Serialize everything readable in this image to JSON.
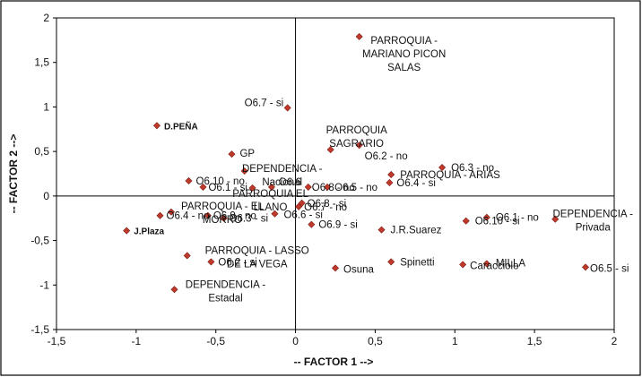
{
  "chart_data": {
    "type": "scatter",
    "title": "",
    "xlabel": "-- FACTOR 1 -->",
    "ylabel": "-- FACTOR 2 -->",
    "xlim": [
      -1.5,
      2
    ],
    "ylim": [
      -1.5,
      2
    ],
    "xticks": [
      "-1,5",
      "-1",
      "-0,5",
      "0",
      "0,5",
      "1",
      "1,5",
      "2"
    ],
    "yticks": [
      "-1,5",
      "-1",
      "-0,5",
      "0",
      "0,5",
      "1",
      "1,5",
      "2"
    ],
    "grid": false,
    "point_color": "#c0392b",
    "points": [
      {
        "label": "PARROQUIA - MARIANO PICON SALAS",
        "x": 0.4,
        "y": 1.79
      },
      {
        "label": "O6.7 - si",
        "x": -0.05,
        "y": 0.99
      },
      {
        "label": "D.PEÑA",
        "x": -0.87,
        "y": 0.79,
        "bold": true
      },
      {
        "label": "PARROQUIA SAGRARIO",
        "x": 0.22,
        "y": 0.52
      },
      {
        "label": "O6.2 - no",
        "x": 0.4,
        "y": 0.57
      },
      {
        "label": "GP",
        "x": -0.4,
        "y": 0.47
      },
      {
        "label": "O6.3 - no",
        "x": 0.92,
        "y": 0.32
      },
      {
        "label": "DEPENDENCIA - Nacional",
        "x": -0.32,
        "y": 0.28
      },
      {
        "label": "PARROQUIA - ARIAS",
        "x": 0.6,
        "y": 0.24
      },
      {
        "label": "O6.10 - no",
        "x": -0.67,
        "y": 0.17
      },
      {
        "label": "O6.4 - si",
        "x": 0.59,
        "y": 0.15
      },
      {
        "label": "O6.1 - si",
        "x": -0.58,
        "y": 0.1
      },
      {
        "label": "PARROQUIA EL LLANO",
        "x": -0.27,
        "y": 0.09
      },
      {
        "label": "O6.6",
        "x": -0.15,
        "y": 0.1
      },
      {
        "label": "O6.8 - no",
        "x": 0.08,
        "y": 0.1
      },
      {
        "label": "O6.5 - no",
        "x": 0.2,
        "y": 0.1
      },
      {
        "label": "O6.7 - no",
        "x": 0.02,
        "y": -0.12
      },
      {
        "label": "O6.8 - si",
        "x": 0.04,
        "y": -0.08
      },
      {
        "label": "PARROQUIA - EL MORRO",
        "x": -0.78,
        "y": -0.18
      },
      {
        "label": "O6.6 - si",
        "x": -0.13,
        "y": -0.2
      },
      {
        "label": "O6.4 - no",
        "x": -0.85,
        "y": -0.22
      },
      {
        "label": "O6.9 - no",
        "x": -0.55,
        "y": -0.22
      },
      {
        "label": "O6.3 - si",
        "x": -0.45,
        "y": -0.25
      },
      {
        "label": "O6.9 - si",
        "x": 0.1,
        "y": -0.32
      },
      {
        "label": "J.R.Suarez",
        "x": 0.54,
        "y": -0.38
      },
      {
        "label": "O6.1 - no",
        "x": 1.2,
        "y": -0.24
      },
      {
        "label": "O6.10 - si",
        "x": 1.07,
        "y": -0.28
      },
      {
        "label": "DEPENDENCIA - Privada",
        "x": 1.63,
        "y": -0.26
      },
      {
        "label": "J.Plaza",
        "x": -1.06,
        "y": -0.39,
        "bold": true
      },
      {
        "label": "PARROQUIA - LASSO DE LA VEGA",
        "x": -0.68,
        "y": -0.67
      },
      {
        "label": "O6.2 - si",
        "x": -0.53,
        "y": -0.74
      },
      {
        "label": "Spinetti",
        "x": 0.6,
        "y": -0.74
      },
      {
        "label": "MILLA",
        "x": 1.2,
        "y": -0.76
      },
      {
        "label": "Caracciolo",
        "x": 1.05,
        "y": -0.77
      },
      {
        "label": "Osuna",
        "x": 0.25,
        "y": -0.81
      },
      {
        "label": "O6.5 - si",
        "x": 1.82,
        "y": -0.8
      },
      {
        "label": "DEPENDENCIA - Estadal",
        "x": -0.76,
        "y": -1.05
      }
    ]
  }
}
